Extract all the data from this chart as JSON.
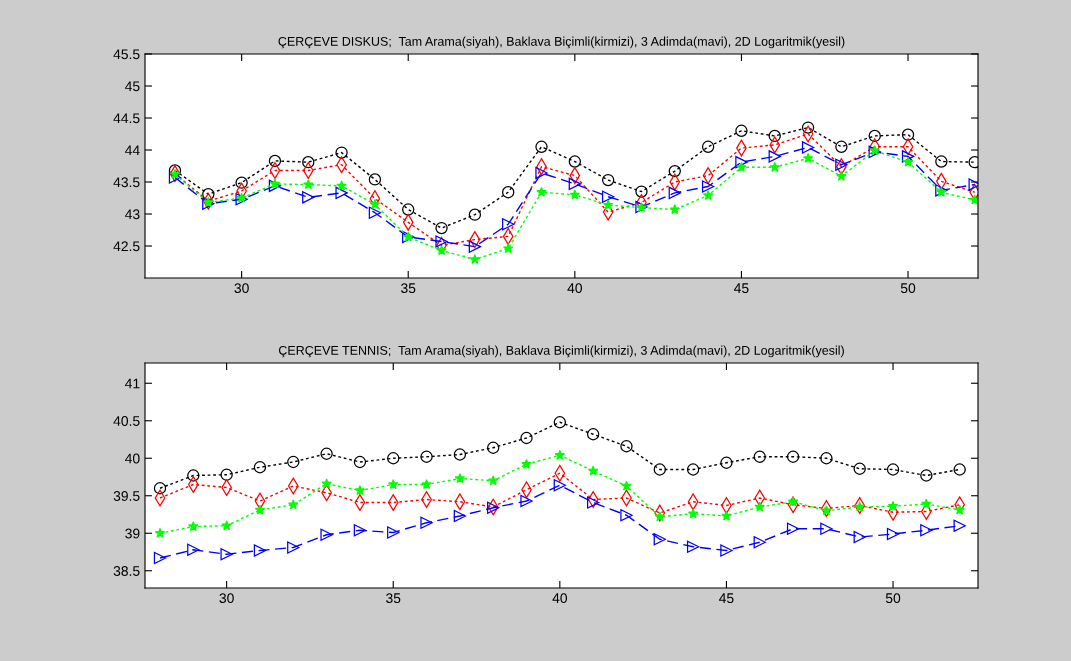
{
  "chart_data": [
    {
      "type": "line",
      "title": "ÇERÇEVE DISKUS;  Tam Arama(siyah), Baklava Biçimli(kirmizi), 3 Adimda(mavi), 2D Logaritmik(yesil)",
      "x": [
        28,
        29,
        30,
        31,
        32,
        33,
        34,
        35,
        36,
        37,
        38,
        39,
        40,
        41,
        42,
        43,
        44,
        45,
        46,
        47,
        48,
        49,
        50,
        51,
        52
      ],
      "xlim": [
        27.1,
        52.1
      ],
      "xticks": [
        30,
        35,
        40,
        45,
        50
      ],
      "ylim": [
        42,
        45.5
      ],
      "yticks": [
        42.5,
        43,
        43.5,
        44,
        44.5,
        45,
        45.5
      ],
      "grid": false,
      "legend": false,
      "series": [
        {
          "color": "#000000",
          "marker": "circle",
          "line_style": "dotted",
          "values": [
            43.68,
            43.31,
            43.49,
            43.83,
            43.81,
            43.96,
            43.54,
            43.07,
            42.78,
            42.99,
            43.34,
            44.05,
            43.82,
            43.53,
            43.35,
            43.67,
            44.05,
            44.3,
            44.22,
            44.35,
            44.05,
            44.22,
            44.24,
            43.82,
            43.81
          ]
        },
        {
          "color": "#ff0000",
          "marker": "diamond",
          "line_style": "dotted",
          "values": [
            43.63,
            43.2,
            43.36,
            43.68,
            43.68,
            43.77,
            43.24,
            42.87,
            42.51,
            42.6,
            42.65,
            43.74,
            43.6,
            43.03,
            43.18,
            43.5,
            43.6,
            44.03,
            44.08,
            44.25,
            43.74,
            44.05,
            44.05,
            43.51,
            43.34
          ]
        },
        {
          "color": "#0000ff",
          "marker": "triangle",
          "line_style": "dashed",
          "values": [
            43.57,
            43.16,
            43.23,
            43.44,
            43.26,
            43.33,
            43.02,
            42.64,
            42.57,
            42.49,
            42.84,
            43.64,
            43.47,
            43.27,
            43.11,
            43.33,
            43.43,
            43.81,
            43.9,
            44.04,
            43.77,
            43.97,
            43.9,
            43.37,
            43.46
          ]
        },
        {
          "color": "#00ff00",
          "marker": "star",
          "line_style": "dotted",
          "values": [
            43.62,
            43.18,
            43.25,
            43.47,
            43.46,
            43.44,
            43.15,
            42.64,
            42.43,
            42.29,
            42.46,
            43.34,
            43.3,
            43.14,
            43.1,
            43.07,
            43.29,
            43.73,
            43.73,
            43.87,
            43.59,
            43.99,
            43.81,
            43.34,
            43.22
          ]
        }
      ]
    },
    {
      "type": "line",
      "title": "ÇERÇEVE TENNIS;  Tam Arama(siyah), Baklava Biçimli(kirmizi), 3 Adimda(mavi), 2D Logaritmik(yesil)",
      "x": [
        28,
        29,
        30,
        31,
        32,
        33,
        34,
        35,
        36,
        37,
        38,
        39,
        40,
        41,
        42,
        43,
        44,
        45,
        46,
        47,
        48,
        49,
        50,
        51,
        52
      ],
      "xlim": [
        27.55,
        52.55
      ],
      "xticks": [
        30,
        35,
        40,
        45,
        50
      ],
      "ylim": [
        38.27,
        41.27
      ],
      "yticks": [
        38.5,
        39,
        39.5,
        40,
        40.5,
        41
      ],
      "grid": false,
      "legend": false,
      "series": [
        {
          "color": "#000000",
          "marker": "circle",
          "line_style": "dotted",
          "values": [
            39.6,
            39.77,
            39.78,
            39.88,
            39.95,
            40.06,
            39.95,
            40.0,
            40.02,
            40.05,
            40.14,
            40.27,
            40.48,
            40.32,
            40.16,
            39.85,
            39.85,
            39.94,
            40.02,
            40.02,
            40.0,
            39.86,
            39.85,
            39.77,
            39.85
          ]
        },
        {
          "color": "#ff0000",
          "marker": "diamond",
          "line_style": "dotted",
          "values": [
            39.47,
            39.65,
            39.61,
            39.43,
            39.63,
            39.54,
            39.41,
            39.41,
            39.45,
            39.42,
            39.35,
            39.58,
            39.8,
            39.45,
            39.47,
            39.27,
            39.42,
            39.37,
            39.47,
            39.38,
            39.33,
            39.37,
            39.28,
            39.29,
            39.38
          ]
        },
        {
          "color": "#0000ff",
          "marker": "triangle",
          "line_style": "dashed",
          "values": [
            38.67,
            38.78,
            38.72,
            38.77,
            38.81,
            38.98,
            39.04,
            39.01,
            39.14,
            39.23,
            39.34,
            39.43,
            39.64,
            39.41,
            39.24,
            38.92,
            38.82,
            38.77,
            38.88,
            39.06,
            39.06,
            38.95,
            38.99,
            39.04,
            39.1
          ]
        },
        {
          "color": "#00ff00",
          "marker": "star",
          "line_style": "dotted",
          "values": [
            39.0,
            39.09,
            39.1,
            39.31,
            39.38,
            39.66,
            39.57,
            39.65,
            39.65,
            39.73,
            39.7,
            39.92,
            40.04,
            39.83,
            39.63,
            39.22,
            39.26,
            39.23,
            39.35,
            39.42,
            39.3,
            39.35,
            39.36,
            39.39,
            39.31
          ]
        }
      ]
    }
  ]
}
